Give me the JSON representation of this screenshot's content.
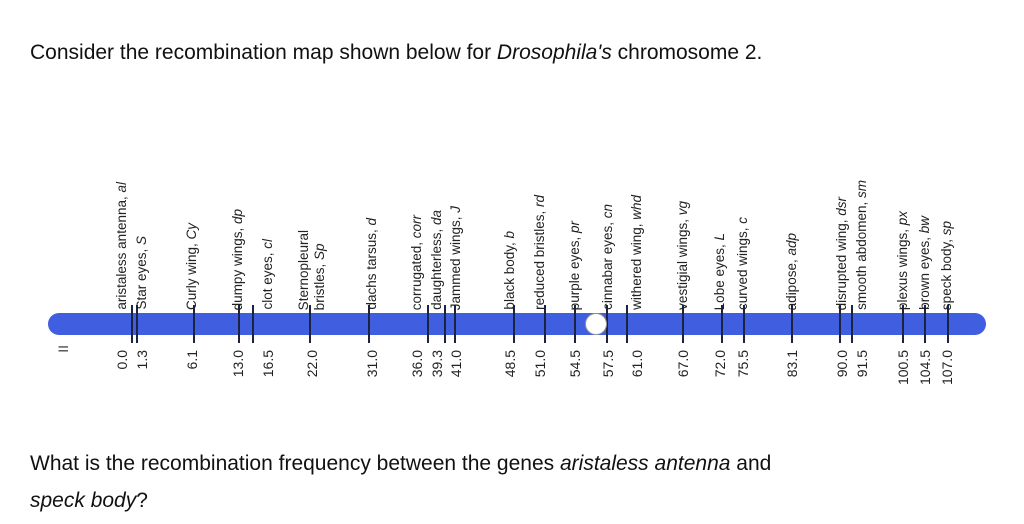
{
  "title": {
    "pre": "Consider the recombination map shown below for ",
    "em": "Drosophila's",
    "post": " chromosome 2."
  },
  "chromosome_label": "II",
  "bar_color": "#3f5fe0",
  "centromere_position": "57.5",
  "markers": [
    {
      "pos": "0.0",
      "name": "aristaless antenna, ",
      "symbol": "al"
    },
    {
      "pos": "1.3",
      "name": "Star eyes, ",
      "symbol": "S"
    },
    {
      "pos": "6.1",
      "name": "Curly wing, ",
      "symbol": "Cy"
    },
    {
      "pos": "13.0",
      "name": "dumpy wings, ",
      "symbol": "dp"
    },
    {
      "pos": "16.5",
      "name": "clot eyes, ",
      "symbol": "cl"
    },
    {
      "pos": "22.0",
      "name": "Sternopleural\nbristles, ",
      "symbol": "Sp"
    },
    {
      "pos": "31.0",
      "name": "dachs tarsus, ",
      "symbol": "d"
    },
    {
      "pos": "36.0",
      "name": "corrugated, ",
      "symbol": "corr"
    },
    {
      "pos": "39.3",
      "name": "daughterless, ",
      "symbol": "da"
    },
    {
      "pos": "41.0",
      "name": "Jammed wings, ",
      "symbol": "J"
    },
    {
      "pos": "48.5",
      "name": "black body, ",
      "symbol": "b"
    },
    {
      "pos": "51.0",
      "name": "reduced bristles, ",
      "symbol": "rd"
    },
    {
      "pos": "54.5",
      "name": "purple eyes, ",
      "symbol": "pr"
    },
    {
      "pos": "57.5",
      "name": "cinnabar eyes, ",
      "symbol": "cn"
    },
    {
      "pos": "61.0",
      "name": "withered wing, ",
      "symbol": "whd"
    },
    {
      "pos": "67.0",
      "name": "vestigial wings, ",
      "symbol": "vg"
    },
    {
      "pos": "72.0",
      "name": "Lobe eyes, ",
      "symbol": "L"
    },
    {
      "pos": "75.5",
      "name": "curved wings, ",
      "symbol": "c"
    },
    {
      "pos": "83.1",
      "name": "adipose, ",
      "symbol": "adp"
    },
    {
      "pos": "90.0",
      "name": "disrupted wing, ",
      "symbol": "dsr"
    },
    {
      "pos": "91.5",
      "name": "smooth abdomen, ",
      "symbol": "sm"
    },
    {
      "pos": "100.5",
      "name": "plexus wings, ",
      "symbol": "px"
    },
    {
      "pos": "104.5",
      "name": "brown eyes, ",
      "symbol": "bw"
    },
    {
      "pos": "107.0",
      "name": "speck body, ",
      "symbol": "sp"
    }
  ],
  "question": {
    "pre": "What is the recombination frequency between the genes ",
    "em1": "aristaless antenna",
    "mid": " and ",
    "em2": "speck body",
    "post": "?"
  }
}
